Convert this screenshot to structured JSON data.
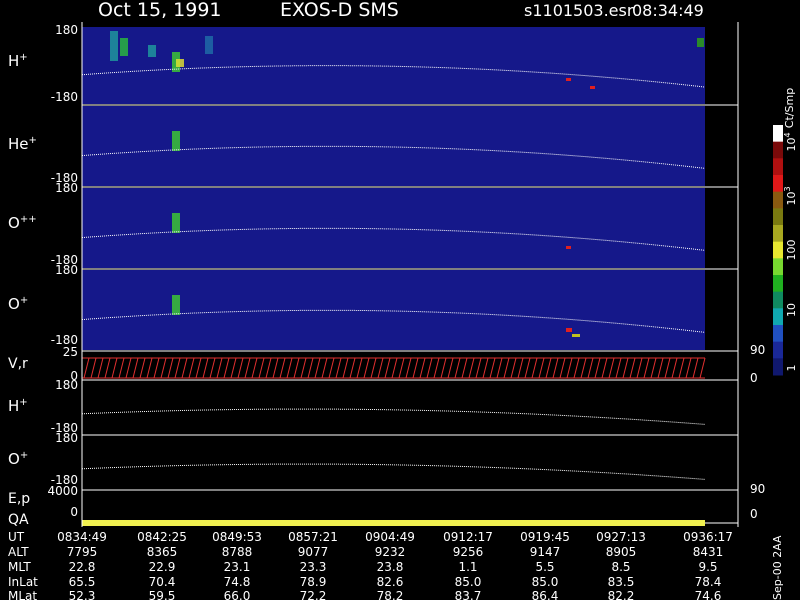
{
  "header": {
    "date": "Oct 15, 1991",
    "instrument": "EXOS-D SMS",
    "file": "s1101503.esr",
    "time": "08:34:49"
  },
  "panels": [
    {
      "ion": "H",
      "charge": "+",
      "top": 180,
      "bottom": -180
    },
    {
      "ion": "He",
      "charge": "+",
      "bottom": -180
    },
    {
      "ion": "O",
      "charge": "++",
      "top": 180,
      "bottom": -180
    },
    {
      "ion": "O",
      "charge": "+",
      "top": 180,
      "bottom": -180
    },
    {
      "label": "V,r",
      "top": 25,
      "bottom": 0,
      "right_top": 90,
      "right_bottom": 0
    },
    {
      "ion": "H",
      "charge": "+",
      "top": 180,
      "bottom": -180
    },
    {
      "ion": "O",
      "charge": "+",
      "top": 180,
      "bottom": -180
    },
    {
      "label": "E,p",
      "top": 4000,
      "bottom": 0,
      "right_top": 90,
      "right_bottom": 0
    },
    {
      "label": "QA"
    }
  ],
  "colorbar": {
    "unit": "Ct/Smp",
    "labels": [
      {
        "base": "10",
        "exp": "4"
      },
      {
        "base": "10",
        "exp": "3"
      },
      "100",
      "10",
      "1"
    ]
  },
  "table": {
    "row_labels": [
      "UT",
      "ALT",
      "MLT",
      "InLat",
      "MLat"
    ],
    "rows": [
      [
        "0834:49",
        "0842:25",
        "0849:53",
        "0857:21",
        "0904:49",
        "0912:17",
        "0919:45",
        "0927:13",
        "0936:17"
      ],
      [
        "7795",
        "8365",
        "8788",
        "9077",
        "9232",
        "9256",
        "9147",
        "8905",
        "8431"
      ],
      [
        "22.8",
        "22.9",
        "23.1",
        "23.3",
        "23.8",
        "1.1",
        "5.5",
        "8.5",
        "9.5"
      ],
      [
        "65.5",
        "70.4",
        "74.8",
        "78.9",
        "82.6",
        "85.0",
        "85.0",
        "83.5",
        "78.4"
      ],
      [
        "52.3",
        "59.5",
        "66.0",
        "72.2",
        "78.2",
        "83.7",
        "86.4",
        "82.2",
        "74.6"
      ]
    ]
  },
  "side_note": "Sep-00 2AA"
}
